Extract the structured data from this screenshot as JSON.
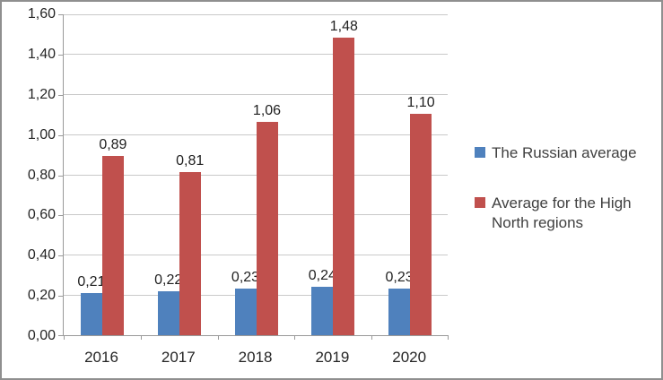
{
  "chart_data": {
    "type": "bar",
    "title": "",
    "xlabel": "",
    "ylabel": "",
    "categories": [
      "2016",
      "2017",
      "2018",
      "2019",
      "2020"
    ],
    "series": [
      {
        "name": "The Russian average",
        "color": "#4F81BD",
        "values": [
          0.21,
          0.22,
          0.23,
          0.24,
          0.23
        ],
        "labels": [
          "0,21",
          "0,22",
          "0,23",
          "0,24",
          "0,23"
        ]
      },
      {
        "name": "Average for the High North regions",
        "color": "#C0504D",
        "values": [
          0.89,
          0.81,
          1.06,
          1.48,
          1.1
        ],
        "labels": [
          "0,89",
          "0,81",
          "1,06",
          "1,48",
          "1,10"
        ]
      }
    ],
    "ylim": [
      0,
      1.6
    ],
    "y_tick_values": [
      0,
      0.2,
      0.4,
      0.6,
      0.8,
      1.0,
      1.2,
      1.4,
      1.6
    ],
    "y_tick_labels": [
      "0,00",
      "0,20",
      "0,40",
      "0,60",
      "0,80",
      "1,00",
      "1,20",
      "1,40",
      "1,60"
    ],
    "grid": true,
    "legend_position": "right",
    "decimal_separator": ","
  }
}
